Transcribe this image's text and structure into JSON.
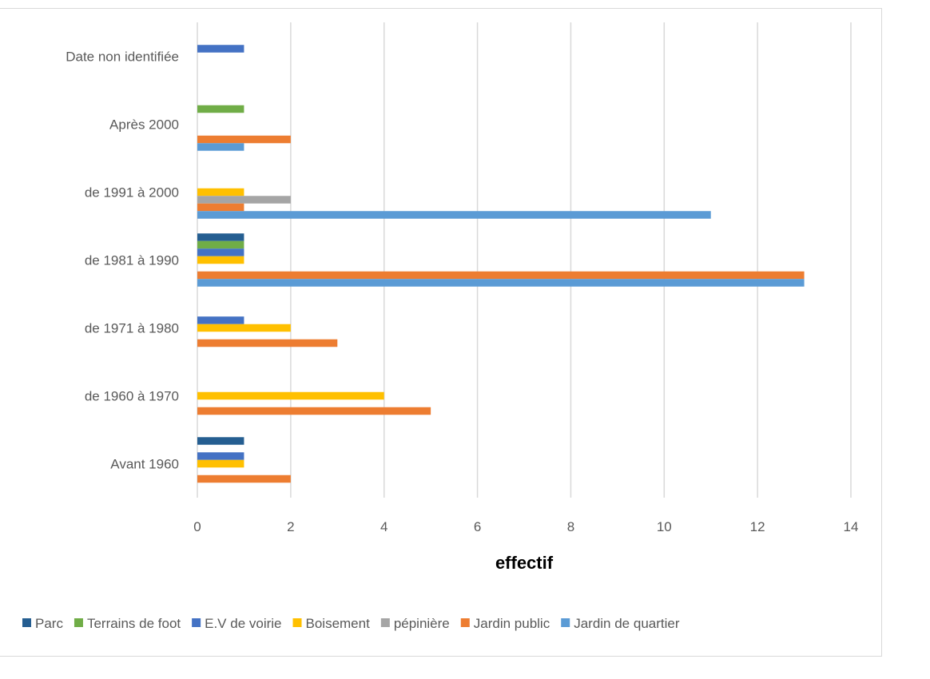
{
  "chart_data": {
    "type": "bar",
    "orientation": "horizontal",
    "title": "",
    "xlabel": "effectif",
    "ylabel": "",
    "xlim": [
      0,
      14
    ],
    "xticks": [
      0,
      2,
      4,
      6,
      8,
      10,
      12,
      14
    ],
    "grid": true,
    "legend_position": "bottom",
    "categories": [
      "Date non identifiée",
      "Après 2000",
      "de 1991 à 2000",
      "de 1981 à 1990",
      "de 1971 à 1980",
      "de 1960 à 1970",
      "Avant 1960"
    ],
    "series": [
      {
        "name": "Parc",
        "color": "#255e91",
        "values": [
          0,
          0,
          0,
          1,
          0,
          0,
          1
        ]
      },
      {
        "name": "Terrains de foot",
        "color": "#70ad47",
        "values": [
          0,
          1,
          0,
          1,
          0,
          0,
          0
        ]
      },
      {
        "name": "E.V de voirie",
        "color": "#4472c4",
        "values": [
          1,
          0,
          0,
          1,
          1,
          0,
          1
        ]
      },
      {
        "name": "Boisement",
        "color": "#ffc000",
        "values": [
          0,
          0,
          1,
          1,
          2,
          4,
          1
        ]
      },
      {
        "name": "pépinière",
        "color": "#a5a5a5",
        "values": [
          0,
          0,
          2,
          0,
          0,
          0,
          0
        ]
      },
      {
        "name": "Jardin public",
        "color": "#ed7d31",
        "values": [
          0,
          2,
          1,
          13,
          3,
          5,
          2
        ]
      },
      {
        "name": "Jardin de quartier",
        "color": "#5b9bd5",
        "values": [
          0,
          1,
          11,
          13,
          0,
          0,
          0
        ]
      }
    ]
  }
}
